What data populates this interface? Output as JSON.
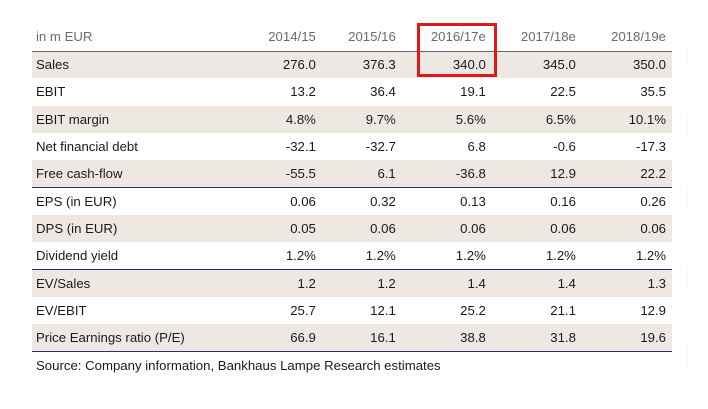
{
  "unit_label": "in m EUR",
  "columns": [
    "2014/15",
    "2015/16",
    "2016/17e",
    "2017/18e",
    "2018/19e"
  ],
  "rows": [
    {
      "label": "Sales",
      "values": [
        "276.0",
        "376.3",
        "340.0",
        "345.0",
        "350.0"
      ]
    },
    {
      "label": "EBIT",
      "values": [
        "13.2",
        "36.4",
        "19.1",
        "22.5",
        "35.5"
      ]
    },
    {
      "label": "EBIT margin",
      "values": [
        "4.8%",
        "9.7%",
        "5.6%",
        "6.5%",
        "10.1%"
      ]
    },
    {
      "label": "Net financial debt",
      "values": [
        "-32.1",
        "-32.7",
        "6.8",
        "-0.6",
        "-17.3"
      ]
    },
    {
      "label": "Free cash-flow",
      "values": [
        "-55.5",
        "6.1",
        "-36.8",
        "12.9",
        "22.2"
      ]
    },
    {
      "label": "EPS (in EUR)",
      "values": [
        "0.06",
        "0.32",
        "0.13",
        "0.16",
        "0.26"
      ]
    },
    {
      "label": "DPS (in EUR)",
      "values": [
        "0.05",
        "0.06",
        "0.06",
        "0.06",
        "0.06"
      ]
    },
    {
      "label": "Dividend yield",
      "values": [
        "1.2%",
        "1.2%",
        "1.2%",
        "1.2%",
        "1.2%"
      ]
    },
    {
      "label": "EV/Sales",
      "values": [
        "1.2",
        "1.2",
        "1.4",
        "1.4",
        "1.3"
      ]
    },
    {
      "label": "EV/EBIT",
      "values": [
        "25.7",
        "12.1",
        "25.2",
        "21.1",
        "12.9"
      ]
    },
    {
      "label": "Price Earnings ratio (P/E)",
      "values": [
        "66.9",
        "16.1",
        "38.8",
        "31.8",
        "19.6"
      ]
    }
  ],
  "source": "Source: Company information, Bankhaus Lampe Research estimates",
  "colors": {
    "shade": "#ede8e1",
    "rule": "#2a2f6e",
    "highlight": "#e01818"
  }
}
